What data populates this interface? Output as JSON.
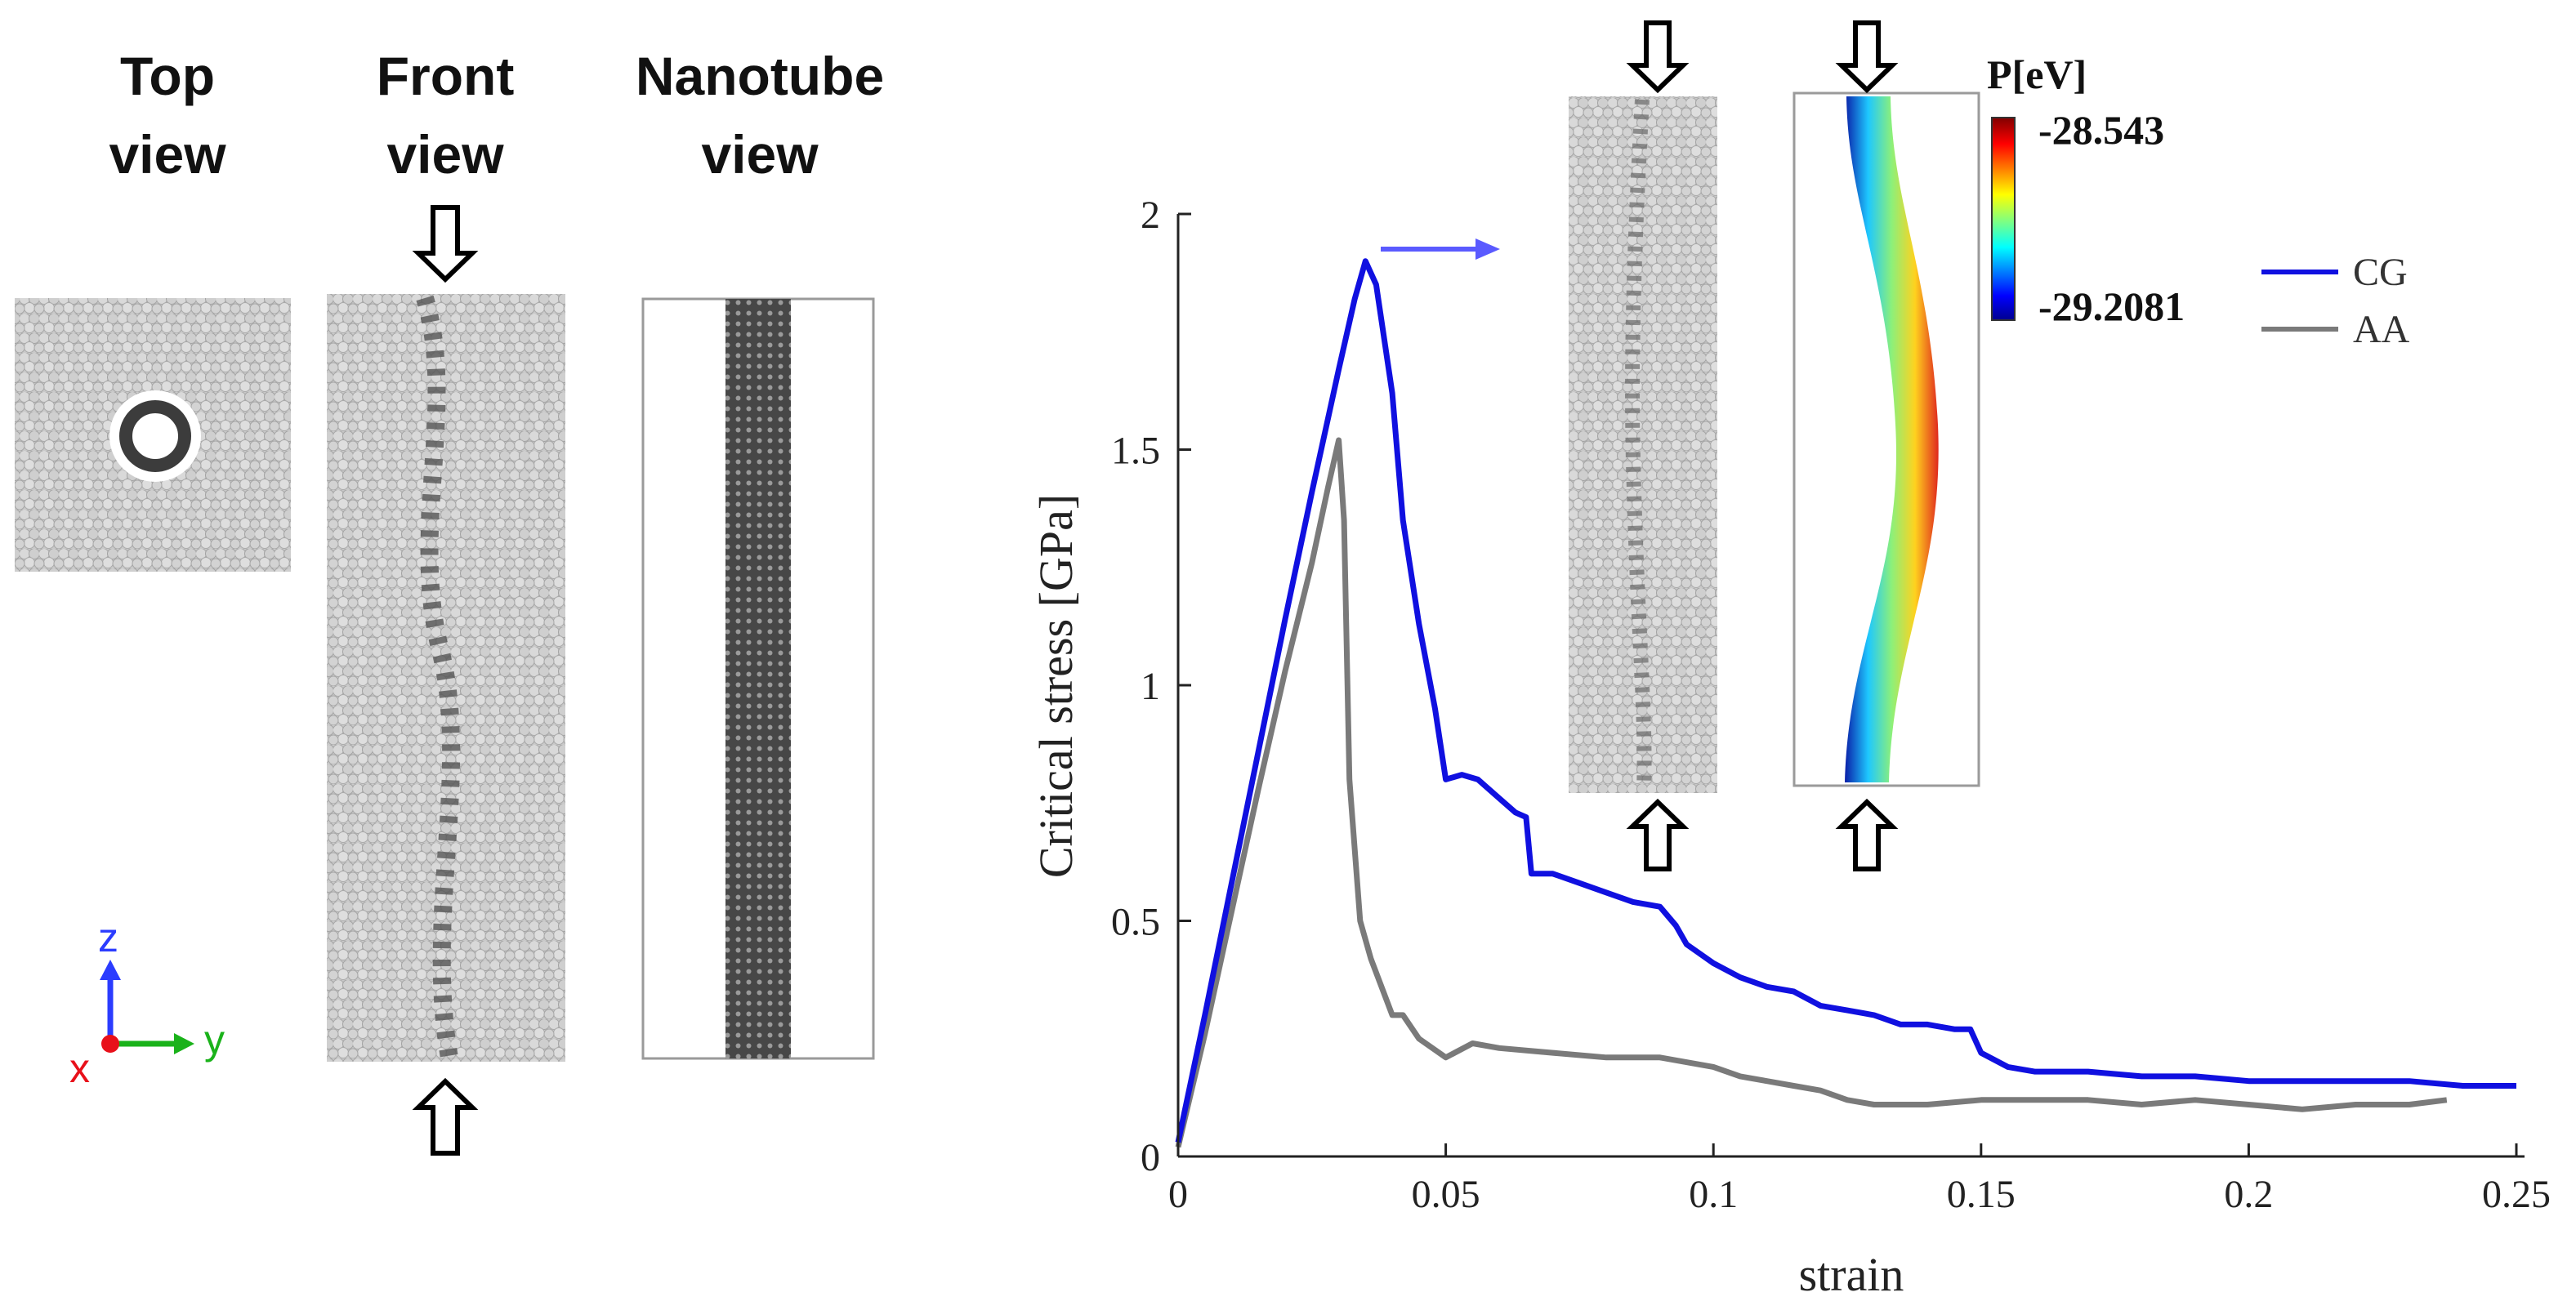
{
  "panels": {
    "top_view": {
      "title": "Top\nview"
    },
    "front_view": {
      "title": "Front\nview"
    },
    "nanotube_view": {
      "title": "Nanotube\nview"
    }
  },
  "axes_triad": {
    "z_label": "z",
    "x_label": "x",
    "y_label": "y",
    "z_color": "#2b3cff",
    "x_color": "#e8101a",
    "y_color": "#1ab21a"
  },
  "colorbar": {
    "title": "P[eV]",
    "max_label": "-28.543",
    "min_label": "-29.2081",
    "max_value": -28.543,
    "min_value": -29.2081
  },
  "chart_data": {
    "type": "line",
    "title": "",
    "xlabel": "strain",
    "ylabel": "Critical stress [GPa]",
    "xlim": [
      0,
      0.25
    ],
    "ylim": [
      0,
      2
    ],
    "xticks": [
      0,
      0.05,
      0.1,
      0.15,
      0.2,
      0.25
    ],
    "xtick_labels": [
      "0",
      "0.05",
      "0.1",
      "0.15",
      "0.2",
      "0.25"
    ],
    "yticks": [
      0,
      0.5,
      1,
      1.5,
      2
    ],
    "ytick_labels": [
      "0",
      "0.5",
      "1",
      "1.5",
      "2"
    ],
    "grid": false,
    "legend_position": "top-right",
    "series": [
      {
        "name": "CG",
        "color": "#1010e0",
        "x": [
          0,
          0.005,
          0.01,
          0.015,
          0.02,
          0.025,
          0.03,
          0.033,
          0.035,
          0.037,
          0.04,
          0.042,
          0.045,
          0.048,
          0.05,
          0.053,
          0.056,
          0.06,
          0.063,
          0.065,
          0.066,
          0.07,
          0.075,
          0.08,
          0.085,
          0.09,
          0.093,
          0.095,
          0.1,
          0.105,
          0.11,
          0.115,
          0.12,
          0.125,
          0.13,
          0.135,
          0.14,
          0.145,
          0.148,
          0.15,
          0.155,
          0.16,
          0.165,
          0.17,
          0.18,
          0.19,
          0.2,
          0.21,
          0.22,
          0.23,
          0.24,
          0.25
        ],
        "y": [
          0.03,
          0.3,
          0.58,
          0.86,
          1.14,
          1.41,
          1.67,
          1.82,
          1.9,
          1.85,
          1.62,
          1.35,
          1.13,
          0.95,
          0.8,
          0.81,
          0.8,
          0.76,
          0.73,
          0.72,
          0.6,
          0.6,
          0.58,
          0.56,
          0.54,
          0.53,
          0.49,
          0.45,
          0.41,
          0.38,
          0.36,
          0.35,
          0.32,
          0.31,
          0.3,
          0.28,
          0.28,
          0.27,
          0.27,
          0.22,
          0.19,
          0.18,
          0.18,
          0.18,
          0.17,
          0.17,
          0.16,
          0.16,
          0.16,
          0.16,
          0.15,
          0.15
        ]
      },
      {
        "name": "AA",
        "color": "#7a7a7a",
        "x": [
          0,
          0.005,
          0.01,
          0.015,
          0.02,
          0.025,
          0.028,
          0.03,
          0.031,
          0.032,
          0.034,
          0.036,
          0.04,
          0.042,
          0.045,
          0.05,
          0.055,
          0.06,
          0.07,
          0.08,
          0.09,
          0.1,
          0.105,
          0.11,
          0.115,
          0.12,
          0.125,
          0.13,
          0.14,
          0.15,
          0.16,
          0.17,
          0.18,
          0.19,
          0.2,
          0.21,
          0.22,
          0.23,
          0.237
        ],
        "y": [
          0.02,
          0.26,
          0.52,
          0.78,
          1.03,
          1.26,
          1.42,
          1.52,
          1.35,
          0.8,
          0.5,
          0.42,
          0.3,
          0.3,
          0.25,
          0.21,
          0.24,
          0.23,
          0.22,
          0.21,
          0.21,
          0.19,
          0.17,
          0.16,
          0.15,
          0.14,
          0.12,
          0.11,
          0.11,
          0.12,
          0.12,
          0.12,
          0.11,
          0.12,
          0.11,
          0.1,
          0.11,
          0.11,
          0.12
        ]
      }
    ],
    "peak_arrow_color": "#5a5aff"
  }
}
